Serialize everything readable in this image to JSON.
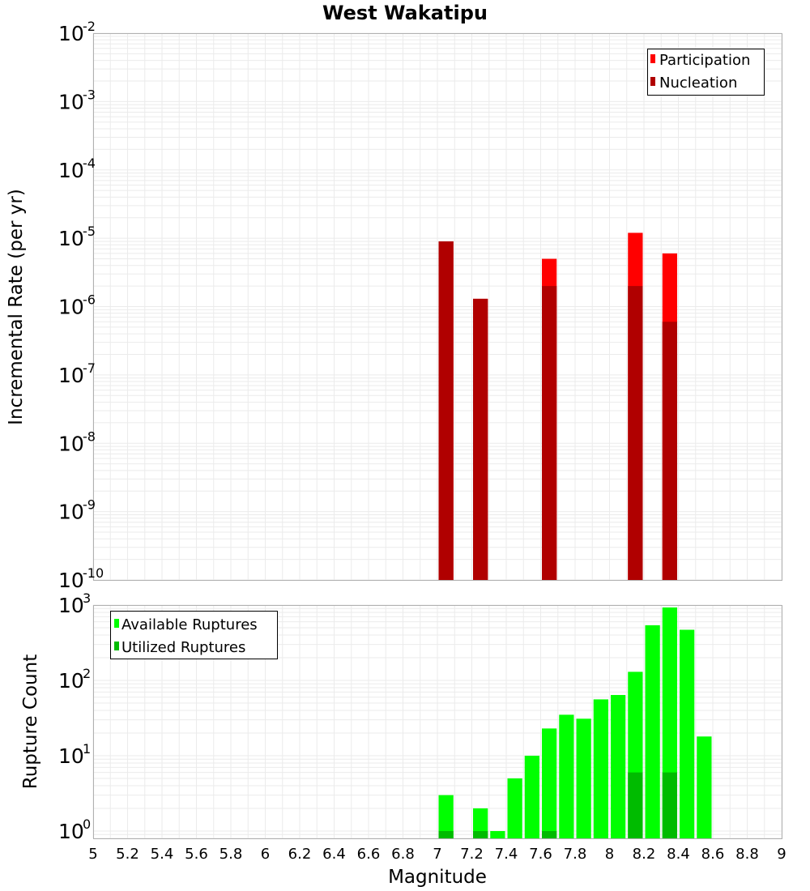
{
  "title": "West Wakatipu",
  "xlabel": "Magnitude",
  "x_ticks": [
    "5",
    "5.2",
    "5.4",
    "5.6",
    "5.8",
    "6",
    "6.2",
    "6.4",
    "6.6",
    "6.8",
    "7",
    "7.2",
    "7.4",
    "7.6",
    "7.8",
    "8",
    "8.2",
    "8.4",
    "8.6",
    "8.8",
    "9"
  ],
  "chart_data": [
    {
      "type": "bar",
      "ylabel": "Incremental Rate (per yr)",
      "y_scale": "log",
      "ylim": [
        1e-10,
        0.01
      ],
      "xlim": [
        5,
        9
      ],
      "bin_width": 0.1,
      "legend": {
        "position": "top-right",
        "entries": [
          "Participation",
          "Nucleation"
        ]
      },
      "y_ticks": [
        {
          "base": "10",
          "exp": "-2",
          "value": 0.01
        },
        {
          "base": "10",
          "exp": "-3",
          "value": 0.001
        },
        {
          "base": "10",
          "exp": "-4",
          "value": 0.0001
        },
        {
          "base": "10",
          "exp": "-5",
          "value": 1e-05
        },
        {
          "base": "10",
          "exp": "-6",
          "value": 1e-06
        },
        {
          "base": "10",
          "exp": "-7",
          "value": 1e-07
        },
        {
          "base": "10",
          "exp": "-8",
          "value": 1e-08
        },
        {
          "base": "10",
          "exp": "-9",
          "value": 1e-09
        },
        {
          "base": "10",
          "exp": "-10",
          "value": 1e-10
        }
      ],
      "x": [
        7.05,
        7.25,
        7.65,
        8.15,
        8.35
      ],
      "series": [
        {
          "name": "Participation",
          "color": "#ff0000",
          "values": [
            9e-06,
            1.3e-06,
            5e-06,
            1.2e-05,
            6e-06
          ]
        },
        {
          "name": "Nucleation",
          "color": "#b00000",
          "values": [
            9e-06,
            1.3e-06,
            2e-06,
            2e-06,
            6e-07
          ]
        }
      ]
    },
    {
      "type": "bar",
      "ylabel": "Rupture Count",
      "y_scale": "log",
      "ylim": [
        0.8,
        1000
      ],
      "xlim": [
        5,
        9
      ],
      "bin_width": 0.1,
      "legend": {
        "position": "top-left",
        "entries": [
          "Available Ruptures",
          "Utilized Ruptures"
        ]
      },
      "y_ticks": [
        {
          "base": "10",
          "exp": "3",
          "value": 1000
        },
        {
          "base": "10",
          "exp": "2",
          "value": 100
        },
        {
          "base": "10",
          "exp": "1",
          "value": 10
        },
        {
          "base": "10",
          "exp": "0",
          "value": 1
        }
      ],
      "x": [
        7.05,
        7.25,
        7.35,
        7.45,
        7.55,
        7.65,
        7.75,
        7.85,
        7.95,
        8.05,
        8.15,
        8.25,
        8.35,
        8.45,
        8.55
      ],
      "series": [
        {
          "name": "Available Ruptures",
          "color": "#00ff00",
          "values": [
            3,
            2,
            1,
            5,
            10,
            23,
            35,
            31,
            56,
            64,
            130,
            540,
            930,
            470,
            18
          ]
        },
        {
          "name": "Utilized Ruptures",
          "color": "#00bb00",
          "values": [
            1,
            1,
            null,
            null,
            null,
            1,
            null,
            null,
            null,
            null,
            6,
            null,
            6,
            null,
            null
          ]
        }
      ]
    }
  ]
}
